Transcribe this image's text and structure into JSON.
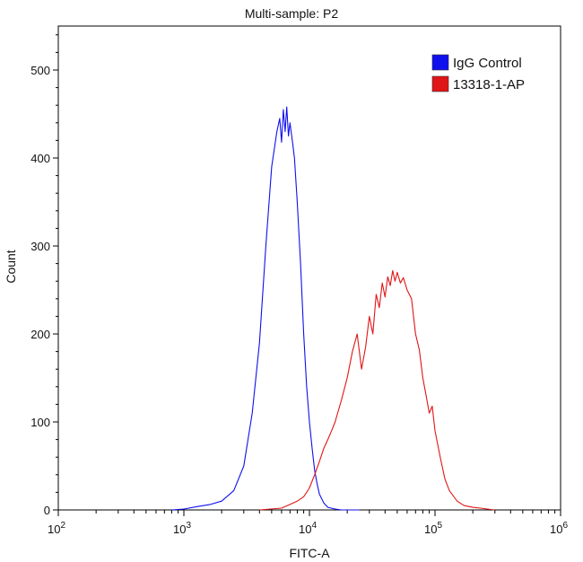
{
  "chart_data": {
    "type": "line",
    "title": "Multi-sample: P2",
    "xlabel": "FITC-A",
    "ylabel": "Count",
    "x_scale": "log",
    "xlim": [
      100,
      1000000
    ],
    "ylim": [
      0,
      550
    ],
    "x_ticks": [
      {
        "value": 100,
        "base": "10",
        "exp": "2"
      },
      {
        "value": 1000,
        "base": "10",
        "exp": "3"
      },
      {
        "value": 10000,
        "base": "10",
        "exp": "4"
      },
      {
        "value": 100000,
        "base": "10",
        "exp": "5"
      },
      {
        "value": 1000000,
        "base": "10",
        "exp": "6"
      }
    ],
    "y_ticks": [
      0,
      100,
      200,
      300,
      400,
      500
    ],
    "grid": false,
    "legend_position": "top-right",
    "series": [
      {
        "name": "IgG Control",
        "color": "#1010ee",
        "x": [
          800,
          1000,
          1300,
          1600,
          2000,
          2500,
          3000,
          3500,
          4000,
          4500,
          5000,
          5500,
          5800,
          6000,
          6200,
          6400,
          6600,
          6800,
          7000,
          7300,
          7600,
          8000,
          8500,
          9000,
          9500,
          10000,
          10500,
          11000,
          11500,
          12000,
          13000,
          14000,
          16000,
          18000,
          20000,
          25000
        ],
        "y": [
          0,
          1,
          4,
          6,
          10,
          22,
          50,
          110,
          190,
          300,
          390,
          430,
          445,
          418,
          455,
          430,
          458,
          425,
          440,
          420,
          400,
          350,
          280,
          200,
          140,
          100,
          70,
          45,
          30,
          18,
          8,
          3,
          1,
          0,
          0,
          0
        ]
      },
      {
        "name": "13318-1-AP",
        "color": "#e01515",
        "x": [
          4000,
          6000,
          8000,
          9000,
          10000,
          11000,
          12000,
          13000,
          14000,
          15000,
          16000,
          18000,
          20000,
          22000,
          24000,
          26000,
          28000,
          30000,
          32000,
          34000,
          36000,
          38000,
          40000,
          42000,
          44000,
          46000,
          48000,
          50000,
          53000,
          56000,
          60000,
          65000,
          70000,
          75000,
          80000,
          85000,
          90000,
          95000,
          100000,
          110000,
          120000,
          130000,
          150000,
          170000,
          200000,
          230000,
          260000,
          300000
        ],
        "y": [
          0,
          2,
          10,
          15,
          25,
          40,
          55,
          70,
          80,
          90,
          100,
          125,
          150,
          180,
          200,
          160,
          185,
          220,
          200,
          245,
          230,
          258,
          242,
          265,
          255,
          272,
          260,
          270,
          258,
          264,
          250,
          240,
          200,
          182,
          150,
          130,
          110,
          118,
          90,
          60,
          35,
          22,
          10,
          5,
          3,
          2,
          1,
          0
        ]
      }
    ]
  },
  "colors": {
    "axis": "#000000",
    "background": "#ffffff"
  }
}
